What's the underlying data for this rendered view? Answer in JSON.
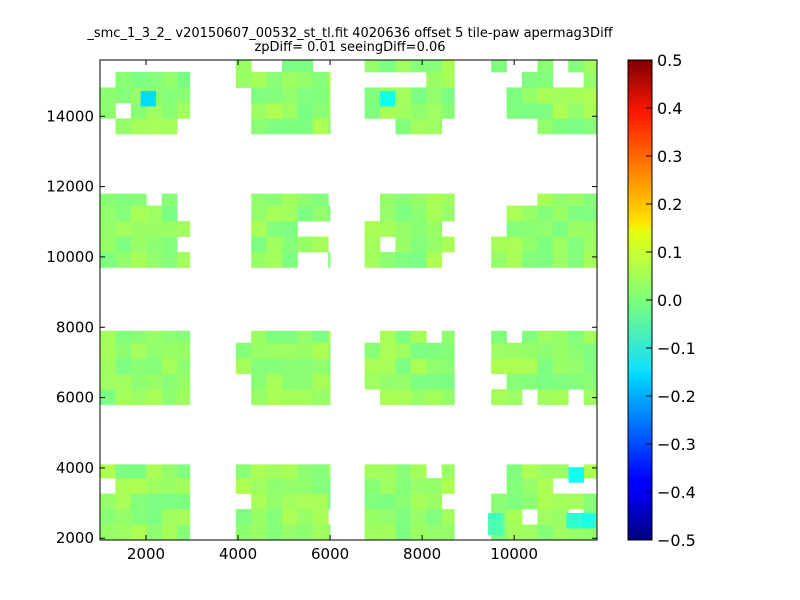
{
  "chart_data": {
    "type": "heatmap",
    "title_line1": "_smc_1_3_2_ v20150607_00532_st_tl.fit 4020636 offset 5 tile-paw apermag3Diff",
    "title_line2": "zpDiff= 0.01 seeingDiff=0.06",
    "xlim": [
      1000,
      11800
    ],
    "ylim": [
      1950,
      15600
    ],
    "x_ticks": [
      2000,
      4000,
      6000,
      8000,
      10000
    ],
    "y_ticks": [
      2000,
      4000,
      6000,
      8000,
      10000,
      12000,
      14000
    ],
    "x_tick_labels": [
      "2000",
      "4000",
      "6000",
      "8000",
      "10000"
    ],
    "y_tick_labels": [
      "2000",
      "4000",
      "6000",
      "8000",
      "10000",
      "12000",
      "14000"
    ],
    "colorbar": {
      "min": -0.5,
      "max": 0.5,
      "colormap": "jet",
      "ticks": [
        0.5,
        0.4,
        0.3,
        0.2,
        0.1,
        0.0,
        -0.1,
        -0.2,
        -0.3,
        -0.4,
        -0.5
      ],
      "tick_labels": [
        "0.5",
        "0.4",
        "0.3",
        "0.2",
        "0.1",
        "0.0",
        "−0.1",
        "−0.2",
        "−0.3",
        "−0.4",
        "−0.5"
      ]
    },
    "cell_size": [
      335,
      440
    ],
    "detector_columns": [
      [
        1000,
        2950
      ],
      [
        3950,
        6000
      ],
      [
        6750,
        8700
      ],
      [
        9500,
        11800
      ]
    ],
    "detector_rows": [
      [
        1950,
        4100
      ],
      [
        5800,
        7900
      ],
      [
        9700,
        11800
      ],
      [
        13500,
        15600
      ]
    ],
    "cell_value_typical": 0.02,
    "gap_cells": [
      [
        1350,
        15150
      ],
      [
        1700,
        15150
      ],
      [
        2000,
        15150
      ],
      [
        2350,
        15150
      ],
      [
        2700,
        15150
      ],
      [
        3100,
        15150
      ],
      [
        4300,
        15150
      ],
      [
        4750,
        15150
      ],
      [
        5500,
        15150
      ],
      [
        5900,
        15150
      ],
      [
        6750,
        14700
      ],
      [
        7100,
        14700
      ],
      [
        7500,
        14700
      ],
      [
        7800,
        14700
      ],
      [
        9500,
        14700
      ],
      [
        9850,
        15150
      ],
      [
        10300,
        15150
      ],
      [
        10800,
        15150
      ],
      [
        10800,
        14700
      ],
      [
        11150,
        14700
      ],
      [
        1000,
        15150
      ],
      [
        1000,
        14700
      ],
      [
        9500,
        14250
      ],
      [
        9850,
        14700
      ],
      [
        9500,
        13850
      ],
      [
        1000,
        13500
      ],
      [
        1350,
        13850
      ],
      [
        2700,
        13500
      ],
      [
        3100,
        13850
      ],
      [
        3950,
        14250
      ],
      [
        3950,
        13850
      ],
      [
        3950,
        13500
      ],
      [
        6200,
        14250
      ],
      [
        6750,
        13500
      ],
      [
        7100,
        13500
      ],
      [
        8350,
        13500
      ],
      [
        9850,
        13500
      ],
      [
        10300,
        13500
      ],
      [
        9500,
        13500
      ],
      [
        2700,
        11400
      ],
      [
        2700,
        10950
      ],
      [
        1900,
        11400
      ],
      [
        3950,
        11400
      ],
      [
        3950,
        10950
      ],
      [
        5900,
        11400
      ],
      [
        6750,
        11400
      ],
      [
        5200,
        10500
      ],
      [
        5600,
        10500
      ],
      [
        5900,
        10500
      ],
      [
        5900,
        10050
      ],
      [
        6750,
        10950
      ],
      [
        9500,
        11400
      ],
      [
        9500,
        10950
      ],
      [
        9500,
        10500
      ],
      [
        9850,
        11400
      ],
      [
        10300,
        11400
      ],
      [
        2700,
        10050
      ],
      [
        3950,
        10500
      ],
      [
        3950,
        10050
      ],
      [
        3950,
        9700
      ],
      [
        5200,
        9700
      ],
      [
        5600,
        9700
      ],
      [
        6200,
        9700
      ],
      [
        7100,
        10050
      ],
      [
        8350,
        10500
      ],
      [
        8700,
        10050
      ],
      [
        8350,
        9700
      ],
      [
        3950,
        7900
      ],
      [
        3950,
        7450
      ],
      [
        6750,
        7450
      ],
      [
        7100,
        7900
      ],
      [
        8000,
        7450
      ],
      [
        9500,
        7900
      ],
      [
        9850,
        7450
      ],
      [
        3950,
        6100
      ],
      [
        3950,
        5800
      ],
      [
        6750,
        5800
      ],
      [
        9500,
        6100
      ],
      [
        10300,
        5800
      ],
      [
        11150,
        5800
      ],
      [
        10650,
        5450
      ],
      [
        3100,
        3150
      ],
      [
        3100,
        2700
      ],
      [
        3100,
        2250
      ],
      [
        3950,
        2700
      ],
      [
        6000,
        2250
      ],
      [
        9500,
        3600
      ],
      [
        9500,
        3150
      ],
      [
        11150,
        3600
      ],
      [
        11150,
        3150
      ],
      [
        11550,
        3150
      ],
      [
        10300,
        2250
      ],
      [
        11150,
        2250
      ],
      [
        10800,
        3150
      ],
      [
        8000,
        3600
      ],
      [
        8350,
        2700
      ],
      [
        1000,
        3150
      ],
      [
        9500,
        4100
      ]
    ],
    "highlight_cells": [
      [
        2050,
        14500,
        -0.16
      ],
      [
        7250,
        14500,
        -0.11
      ],
      [
        11350,
        3800,
        -0.11
      ],
      [
        11600,
        2500,
        -0.1
      ],
      [
        11300,
        2500,
        -0.08
      ],
      [
        9600,
        2500,
        -0.06
      ],
      [
        9600,
        2300,
        -0.05
      ]
    ]
  }
}
